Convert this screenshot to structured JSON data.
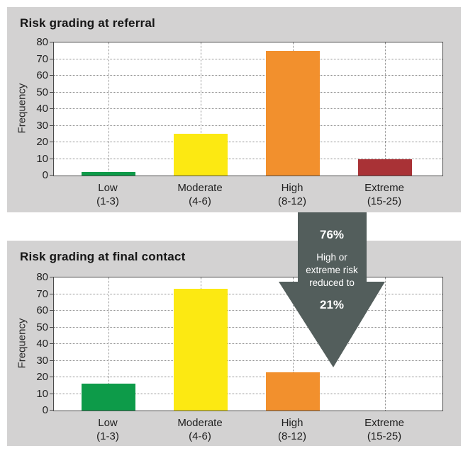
{
  "colors": {
    "panel_background": "#d3d2d2",
    "plot_background": "#ffffff",
    "gridline": "#8f8f8f",
    "axis": "#4a4a4a",
    "text": "#1c1c1c",
    "arrow": "#535e5c",
    "arrow_text": "#ffffff",
    "bar_low": "#0d9b49",
    "bar_moderate": "#fce912",
    "bar_high": "#f2902d",
    "bar_extreme": "#a93236"
  },
  "arrow": {
    "top_pct": "76%",
    "description": "High or extreme risk reduced to",
    "description_lines": [
      "High or",
      "extreme risk",
      "reduced to"
    ],
    "bottom_pct": "21%",
    "color": "#535e5c"
  },
  "chart_data": [
    {
      "type": "bar",
      "title": "Risk grading at referral",
      "xlabel": "",
      "ylabel": "Frequency",
      "ylim": [
        0,
        80
      ],
      "ytick_step": 10,
      "grid": "dotted",
      "legend": "none",
      "categories": [
        "Low (1-3)",
        "Moderate (4-6)",
        "High (8-12)",
        "Extreme (15-25)"
      ],
      "category_keys": [
        "low",
        "moderate",
        "high",
        "extreme"
      ],
      "category_lines": [
        [
          "Low",
          "(1-3)"
        ],
        [
          "Moderate",
          "(4-6)"
        ],
        [
          "High",
          "(8-12)"
        ],
        [
          "Extreme",
          "(15-25)"
        ]
      ],
      "values": [
        2,
        25,
        75,
        10
      ],
      "bar_colors": [
        "#0d9b49",
        "#fce912",
        "#f2902d",
        "#a93236"
      ]
    },
    {
      "type": "bar",
      "title": "Risk grading at final contact",
      "xlabel": "",
      "ylabel": "Frequency",
      "ylim": [
        0,
        80
      ],
      "ytick_step": 10,
      "grid": "dotted",
      "legend": "none",
      "categories": [
        "Low (1-3)",
        "Moderate (4-6)",
        "High (8-12)",
        "Extreme (15-25)"
      ],
      "category_keys": [
        "low",
        "moderate",
        "high",
        "extreme"
      ],
      "category_lines": [
        [
          "Low",
          "(1-3)"
        ],
        [
          "Moderate",
          "(4-6)"
        ],
        [
          "High",
          "(8-12)"
        ],
        [
          "Extreme",
          "(15-25)"
        ]
      ],
      "values": [
        16,
        73,
        23,
        0
      ],
      "bar_colors": [
        "#0d9b49",
        "#fce912",
        "#f2902d",
        "#a93236"
      ]
    }
  ]
}
